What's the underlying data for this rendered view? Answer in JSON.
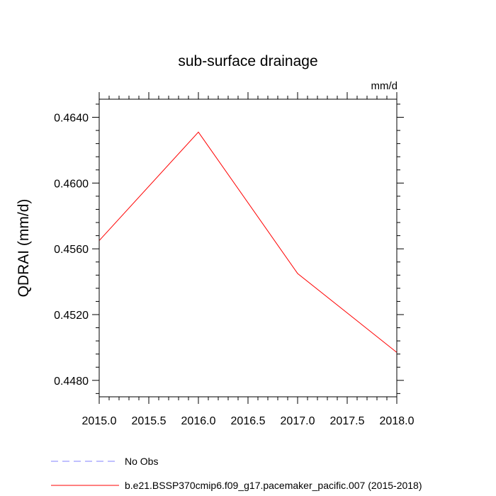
{
  "chart_data": {
    "type": "line",
    "title": "sub-surface drainage",
    "units": "mm/d",
    "ylabel": "QDRAI  (mm/d)",
    "xlabel": "",
    "xlim": [
      2015.0,
      2018.0
    ],
    "ylim": [
      0.447,
      0.4651
    ],
    "x_ticks": [
      2015.0,
      2015.5,
      2016.0,
      2016.5,
      2017.0,
      2017.5,
      2018.0
    ],
    "x_tick_labels": [
      "2015.0",
      "2015.5",
      "2016.0",
      "2016.5",
      "2017.0",
      "2017.5",
      "2018.0"
    ],
    "y_ticks": [
      0.448,
      0.452,
      0.456,
      0.46,
      0.464
    ],
    "y_tick_labels": [
      "0.4480",
      "0.4520",
      "0.4560",
      "0.4600",
      "0.4640"
    ],
    "grid": false,
    "series": [
      {
        "name": "b.e21.BSSP370cmip6.f09_g17.pacemaker_pacific.007 (2015-2018)",
        "color": "#ff0000",
        "dash": "solid",
        "x": [
          2015,
          2016,
          2017,
          2018
        ],
        "values": [
          0.4565,
          0.4631,
          0.4545,
          0.4497
        ]
      }
    ],
    "legend": [
      {
        "label": "No Obs",
        "color": "#8080ff",
        "dash": "dashed"
      },
      {
        "label": "b.e21.BSSP370cmip6.f09_g17.pacemaker_pacific.007 (2015-2018)",
        "color": "#ff0000",
        "dash": "solid"
      }
    ],
    "legend_position": "bottom"
  }
}
